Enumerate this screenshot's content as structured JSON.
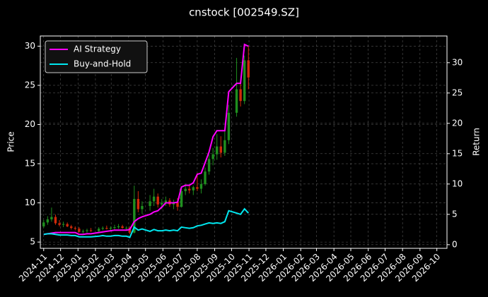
{
  "chart_data": {
    "type": "candlestick",
    "title": "cnstock [002549.SZ]",
    "ylabel": "Price",
    "y2label": "Return",
    "x": [
      "2024-11-01",
      "2024-11-08",
      "2024-11-15",
      "2024-11-22",
      "2024-11-29",
      "2024-12-06",
      "2024-12-13",
      "2024-12-20",
      "2024-12-27",
      "2025-01-03",
      "2025-01-10",
      "2025-01-17",
      "2025-01-24",
      "2025-02-07",
      "2025-02-14",
      "2025-02-21",
      "2025-02-28",
      "2025-03-07",
      "2025-03-14",
      "2025-03-21",
      "2025-03-28",
      "2025-04-03",
      "2025-04-11",
      "2025-04-18",
      "2025-04-25",
      "2025-05-09",
      "2025-05-16",
      "2025-05-23",
      "2025-05-30",
      "2025-06-06",
      "2025-06-13",
      "2025-06-20",
      "2025-06-27",
      "2025-07-04",
      "2025-07-11",
      "2025-07-18",
      "2025-07-25",
      "2025-08-01",
      "2025-08-08",
      "2025-08-15",
      "2025-08-22",
      "2025-08-29",
      "2025-09-05",
      "2025-09-12",
      "2025-09-19",
      "2025-09-26",
      "2025-10-10",
      "2025-10-17",
      "2025-10-24",
      "2025-10-31"
    ],
    "open": [
      7.0,
      7.5,
      7.9,
      8.2,
      7.4,
      7.2,
      7.3,
      7.0,
      6.8,
      6.7,
      6.3,
      6.4,
      6.5,
      6.4,
      6.7,
      6.8,
      6.7,
      6.8,
      6.9,
      7.0,
      6.8,
      6.8,
      6.2,
      10.5,
      9.2,
      9.6,
      10.2,
      10.8,
      9.8,
      10.0,
      10.3,
      9.8,
      10.1,
      9.5,
      11.5,
      11.8,
      11.6,
      12.0,
      11.8,
      12.4,
      14.0,
      15.6,
      16.2,
      17.2,
      16.4,
      18.0,
      21.5,
      24.5,
      23.0,
      28.2
    ],
    "high": [
      7.8,
      8.3,
      9.4,
      8.5,
      7.8,
      7.6,
      7.5,
      7.2,
      7.0,
      6.9,
      6.6,
      6.7,
      6.8,
      6.9,
      7.0,
      7.1,
      7.0,
      7.2,
      7.3,
      7.2,
      7.0,
      7.0,
      12.2,
      11.5,
      10.2,
      11.0,
      11.8,
      11.2,
      10.5,
      10.8,
      10.6,
      10.4,
      10.6,
      12.0,
      12.4,
      12.3,
      12.2,
      13.8,
      13.0,
      14.5,
      16.2,
      17.0,
      18.8,
      18.5,
      19.5,
      22.5,
      28.5,
      25.5,
      28.8,
      30.0
    ],
    "low": [
      6.8,
      7.2,
      7.6,
      7.2,
      7.0,
      6.9,
      6.9,
      6.6,
      6.5,
      6.2,
      6.1,
      6.2,
      6.3,
      6.3,
      6.5,
      6.6,
      6.5,
      6.6,
      6.7,
      6.7,
      6.6,
      6.0,
      6.1,
      8.8,
      8.6,
      9.0,
      9.6,
      9.4,
      9.2,
      9.6,
      9.5,
      9.2,
      9.0,
      9.4,
      11.0,
      11.2,
      11.0,
      11.5,
      11.2,
      12.2,
      13.6,
      14.8,
      15.5,
      15.8,
      16.0,
      17.5,
      21.0,
      22.3,
      22.6,
      24.5
    ],
    "close": [
      7.5,
      7.9,
      8.2,
      7.4,
      7.2,
      7.3,
      7.0,
      6.8,
      6.7,
      6.3,
      6.4,
      6.5,
      6.4,
      6.7,
      6.8,
      6.7,
      6.8,
      6.9,
      7.0,
      6.8,
      6.8,
      6.2,
      10.5,
      9.2,
      9.6,
      10.2,
      10.8,
      9.8,
      10.0,
      10.3,
      9.8,
      10.1,
      9.5,
      11.5,
      11.8,
      11.6,
      12.0,
      11.8,
      12.4,
      14.0,
      15.6,
      16.2,
      17.2,
      16.4,
      18.0,
      21.5,
      24.5,
      23.0,
      28.2,
      26.0
    ],
    "up_color": "#1f8f1f",
    "down_color": "#d12a0a",
    "series": [
      {
        "name": "AI Strategy",
        "color": "#ff00ff",
        "axis": "y2",
        "values": [
          1.7,
          1.8,
          1.9,
          2.0,
          2.0,
          2.0,
          2.0,
          2.0,
          2.0,
          1.7,
          1.7,
          1.8,
          1.8,
          2.0,
          2.1,
          2.2,
          2.3,
          2.4,
          2.4,
          2.4,
          2.4,
          2.5,
          3.8,
          4.3,
          4.6,
          5.0,
          5.4,
          5.6,
          6.2,
          6.9,
          6.9,
          6.9,
          7.0,
          9.5,
          9.8,
          9.8,
          10.2,
          11.6,
          11.8,
          13.5,
          15.3,
          17.8,
          18.8,
          18.8,
          18.8,
          25.2,
          26.6,
          26.6,
          33.0,
          32.7
        ]
      },
      {
        "name": "Buy-and-Hold",
        "color": "#00e8f0",
        "axis": "y2",
        "values": [
          1.7,
          1.8,
          1.8,
          1.7,
          1.6,
          1.6,
          1.6,
          1.5,
          1.5,
          1.3,
          1.3,
          1.3,
          1.3,
          1.4,
          1.5,
          1.4,
          1.4,
          1.5,
          1.5,
          1.4,
          1.4,
          1.2,
          2.9,
          2.4,
          2.6,
          2.2,
          2.5,
          2.3,
          2.3,
          2.4,
          2.3,
          2.4,
          2.3,
          2.9,
          2.8,
          2.7,
          2.8,
          3.1,
          3.2,
          3.4,
          3.6,
          3.5,
          3.6,
          3.5,
          3.8,
          5.6,
          5.2,
          5.0,
          5.9,
          5.2
        ]
      }
    ],
    "xlim": [
      "2024-10-26",
      "2026-10-19"
    ],
    "xticks": [
      "2024-11",
      "2024-12",
      "2025-01",
      "2025-02",
      "2025-03",
      "2025-04",
      "2025-05",
      "2025-06",
      "2025-07",
      "2025-08",
      "2025-09",
      "2025-10",
      "2025-11",
      "2025-12",
      "2026-01",
      "2026-02",
      "2026-03",
      "2026-04",
      "2026-05",
      "2026-06",
      "2026-07",
      "2026-08",
      "2026-09",
      "2026-10"
    ],
    "ylim": [
      4.2,
      31.3
    ],
    "yticks": [
      5,
      10,
      15,
      20,
      25,
      30
    ],
    "y2lim": [
      -0.6,
      34.4
    ],
    "y2ticks": [
      0,
      5,
      10,
      15,
      20,
      25,
      30
    ],
    "grid": true,
    "legend": "upper left"
  }
}
